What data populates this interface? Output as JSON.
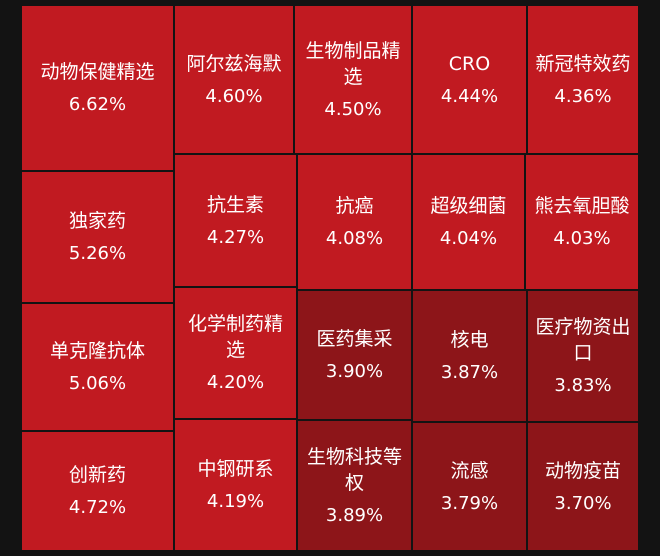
{
  "treemap": {
    "tiles": [
      {
        "name": "动物保健精选",
        "change": "6.62%",
        "color": "#c11a21"
      },
      {
        "name": "阿尔兹海默",
        "change": "4.60%",
        "color": "#c11a21"
      },
      {
        "name": "生物制品精选",
        "change": "4.50%",
        "color": "#c11a21"
      },
      {
        "name": "CRO",
        "change": "4.44%",
        "color": "#c11a21"
      },
      {
        "name": "新冠特效药",
        "change": "4.36%",
        "color": "#c11a21"
      },
      {
        "name": "独家药",
        "change": "5.26%",
        "color": "#c11a21"
      },
      {
        "name": "抗生素",
        "change": "4.27%",
        "color": "#c11a21"
      },
      {
        "name": "抗癌",
        "change": "4.08%",
        "color": "#c11a21"
      },
      {
        "name": "超级细菌",
        "change": "4.04%",
        "color": "#c11a21"
      },
      {
        "name": "熊去氧胆酸",
        "change": "4.03%",
        "color": "#c11a21"
      },
      {
        "name": "单克隆抗体",
        "change": "5.06%",
        "color": "#c11a21"
      },
      {
        "name": "化学制药精选",
        "change": "4.20%",
        "color": "#c11a21"
      },
      {
        "name": "医药集采",
        "change": "3.90%",
        "color": "#8d1519"
      },
      {
        "name": "核电",
        "change": "3.87%",
        "color": "#8d1519"
      },
      {
        "name": "医疗物资出口",
        "change": "3.83%",
        "color": "#8d1519"
      },
      {
        "name": "创新药",
        "change": "4.72%",
        "color": "#c11a21"
      },
      {
        "name": "中钢研系",
        "change": "4.19%",
        "color": "#c11a21"
      },
      {
        "name": "生物科技等权",
        "change": "3.89%",
        "color": "#8d1519"
      },
      {
        "name": "流感",
        "change": "3.79%",
        "color": "#8d1519"
      },
      {
        "name": "动物疫苗",
        "change": "3.70%",
        "color": "#8d1519"
      }
    ]
  }
}
